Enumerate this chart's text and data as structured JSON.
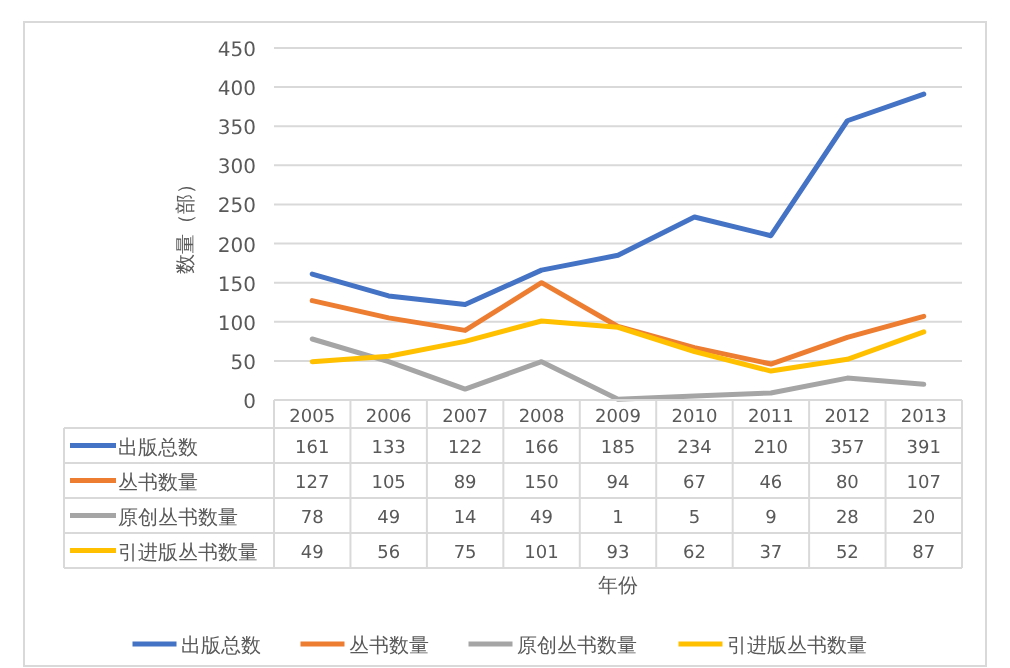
{
  "chart_data": {
    "type": "line",
    "annotations": [
      "年份"
    ],
    "ylabel": "数量（部）",
    "categories": [
      "2005",
      "2006",
      "2007",
      "2008",
      "2009",
      "2010",
      "2011",
      "2012",
      "2013"
    ],
    "series": [
      {
        "name": "出版总数",
        "color": "#4472c4",
        "values": [
          161,
          133,
          122,
          166,
          185,
          234,
          210,
          357,
          391
        ]
      },
      {
        "name": "丛书数量",
        "color": "#ed7d31",
        "values": [
          127,
          105,
          89,
          150,
          94,
          67,
          46,
          80,
          107
        ]
      },
      {
        "name": "原创丛书数量",
        "color": "#a5a5a5",
        "values": [
          78,
          49,
          14,
          49,
          1,
          5,
          9,
          28,
          20
        ]
      },
      {
        "name": "引进版丛书数量",
        "color": "#ffc000",
        "values": [
          49,
          56,
          75,
          101,
          93,
          62,
          37,
          52,
          87
        ]
      }
    ],
    "ylim": [
      0,
      450
    ],
    "yticks": [
      0,
      50,
      100,
      150,
      200,
      250,
      300,
      350,
      400,
      450
    ],
    "grid": "y",
    "legend": "bottom",
    "data_labels": true,
    "marker": "none",
    "line_style": "solid"
  }
}
